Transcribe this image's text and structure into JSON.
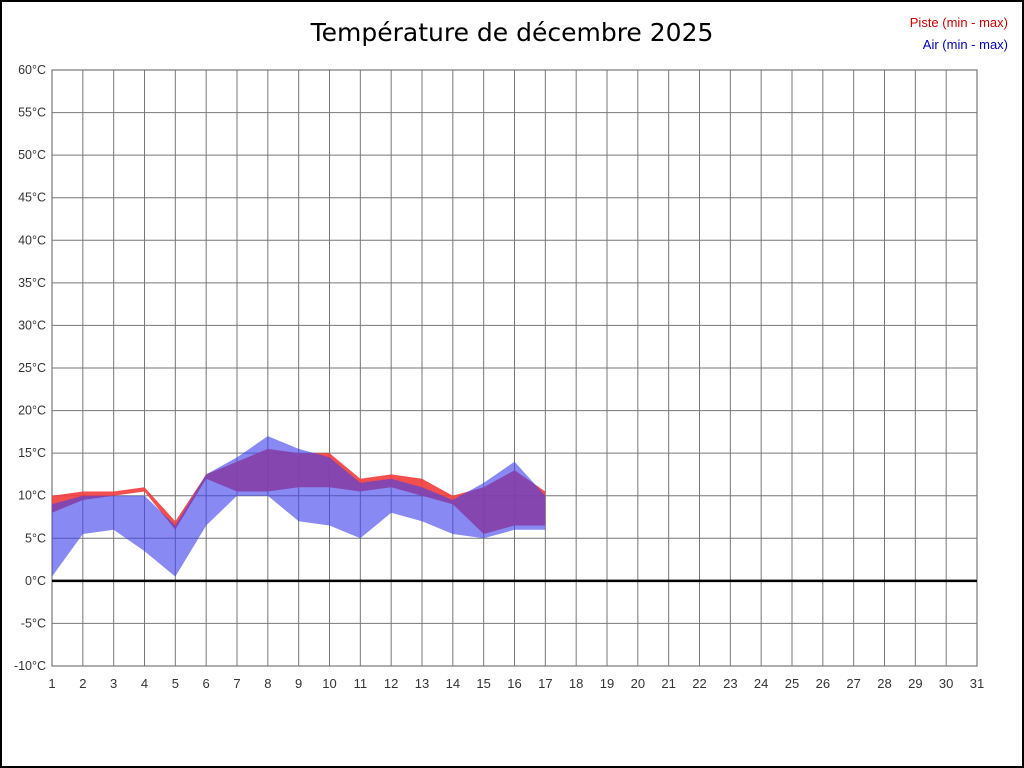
{
  "chart_data": {
    "type": "area",
    "variant": "min-max-range-bands",
    "title": "Température de décembre 2025",
    "y_unit": "°C",
    "ylim": [
      -10,
      60
    ],
    "y_ticks": [
      60,
      55,
      50,
      45,
      40,
      35,
      30,
      25,
      20,
      15,
      10,
      5,
      0,
      -5,
      -10
    ],
    "xlim": [
      1,
      31
    ],
    "x_ticks": [
      1,
      2,
      3,
      4,
      5,
      6,
      7,
      8,
      9,
      10,
      11,
      12,
      13,
      14,
      15,
      16,
      17,
      18,
      19,
      20,
      21,
      22,
      23,
      24,
      25,
      26,
      27,
      28,
      29,
      30,
      31
    ],
    "zero_line_value": 0,
    "grid": true,
    "legend_position": "top-right",
    "colors": {
      "piste_text": "#cc0000",
      "air_text": "#0000bb",
      "piste_fill": "rgba(242,60,60,0.9)",
      "air_fill": "rgba(64,64,235,0.62)",
      "grid": "#777777",
      "zero_line": "#000000",
      "axis_text": "#333333"
    },
    "series": [
      {
        "name": "Piste (min - max)",
        "color": "#cc0000",
        "fill": "rgba(242,60,60,0.9)",
        "x": [
          1,
          2,
          3,
          4,
          5,
          6,
          7,
          8,
          9,
          10,
          11,
          12,
          13,
          14,
          15,
          16,
          17
        ],
        "min": [
          8,
          9.5,
          10,
          10.5,
          6,
          12,
          10.5,
          10.5,
          11,
          11,
          10.5,
          11,
          10,
          9,
          5.5,
          6.5,
          6.5
        ],
        "max": [
          10,
          10.5,
          10.5,
          11,
          7,
          12.5,
          14,
          15.5,
          15,
          15,
          12,
          12.5,
          12,
          10,
          11,
          13,
          10.5
        ]
      },
      {
        "name": "Air (min - max)",
        "color": "#0000bb",
        "fill": "rgba(64,64,235,0.62)",
        "x": [
          1,
          2,
          3,
          4,
          5,
          6,
          7,
          8,
          9,
          10,
          11,
          12,
          13,
          14,
          15,
          16,
          17
        ],
        "min": [
          0.5,
          5.5,
          6,
          3.5,
          0.5,
          6.5,
          10,
          10,
          7,
          6.5,
          5,
          8,
          7,
          5.5,
          5,
          6,
          6
        ],
        "max": [
          9,
          10,
          10,
          10,
          6.5,
          12.5,
          14.5,
          17,
          15.5,
          14.5,
          11.5,
          12,
          11,
          9.5,
          11.5,
          14,
          10
        ]
      }
    ]
  }
}
